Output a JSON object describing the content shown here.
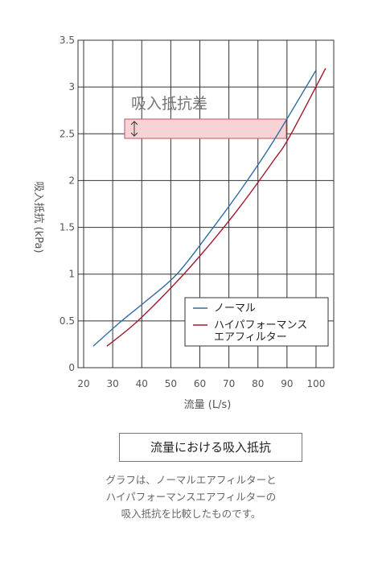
{
  "chart_data": {
    "type": "line",
    "title": "流量における吸入抵抗",
    "description": [
      "グラフは、ノーマルエアフィルターと",
      "ハイパフォーマンスエアフィルターの",
      "吸入抵抗を比較したものです。"
    ],
    "annotation": "吸入抵抗差",
    "x_label": "流量 (L/s)",
    "y_label": "吸入抵抗 (kPa)",
    "xlim": [
      18.06,
      106.1
    ],
    "ylim": [
      0,
      3.5
    ],
    "xticks": [
      20,
      30,
      40,
      50,
      60,
      70,
      80,
      90,
      100
    ],
    "yticks": [
      0,
      0.5,
      1,
      1.5,
      2,
      2.5,
      3,
      3.5
    ],
    "grid": true,
    "series": [
      {
        "name": "ノーマル",
        "color": "#2e6da4",
        "x": [
          23.3,
          32.7,
          41.0,
          52.1,
          63.2,
          74.3,
          85.3,
          100
        ],
        "values": [
          0.23,
          0.49,
          0.7,
          1.0,
          1.44,
          1.91,
          2.42,
          3.18
        ]
      },
      {
        "name": "ハイパフォーマンス\nエアフィルター",
        "color": "#a3192e",
        "x": [
          28.0,
          38.3,
          52.1,
          63.2,
          74.3,
          85.3,
          90.9,
          103.3
        ],
        "values": [
          0.23,
          0.49,
          0.92,
          1.31,
          1.74,
          2.21,
          2.47,
          3.2
        ]
      }
    ]
  }
}
